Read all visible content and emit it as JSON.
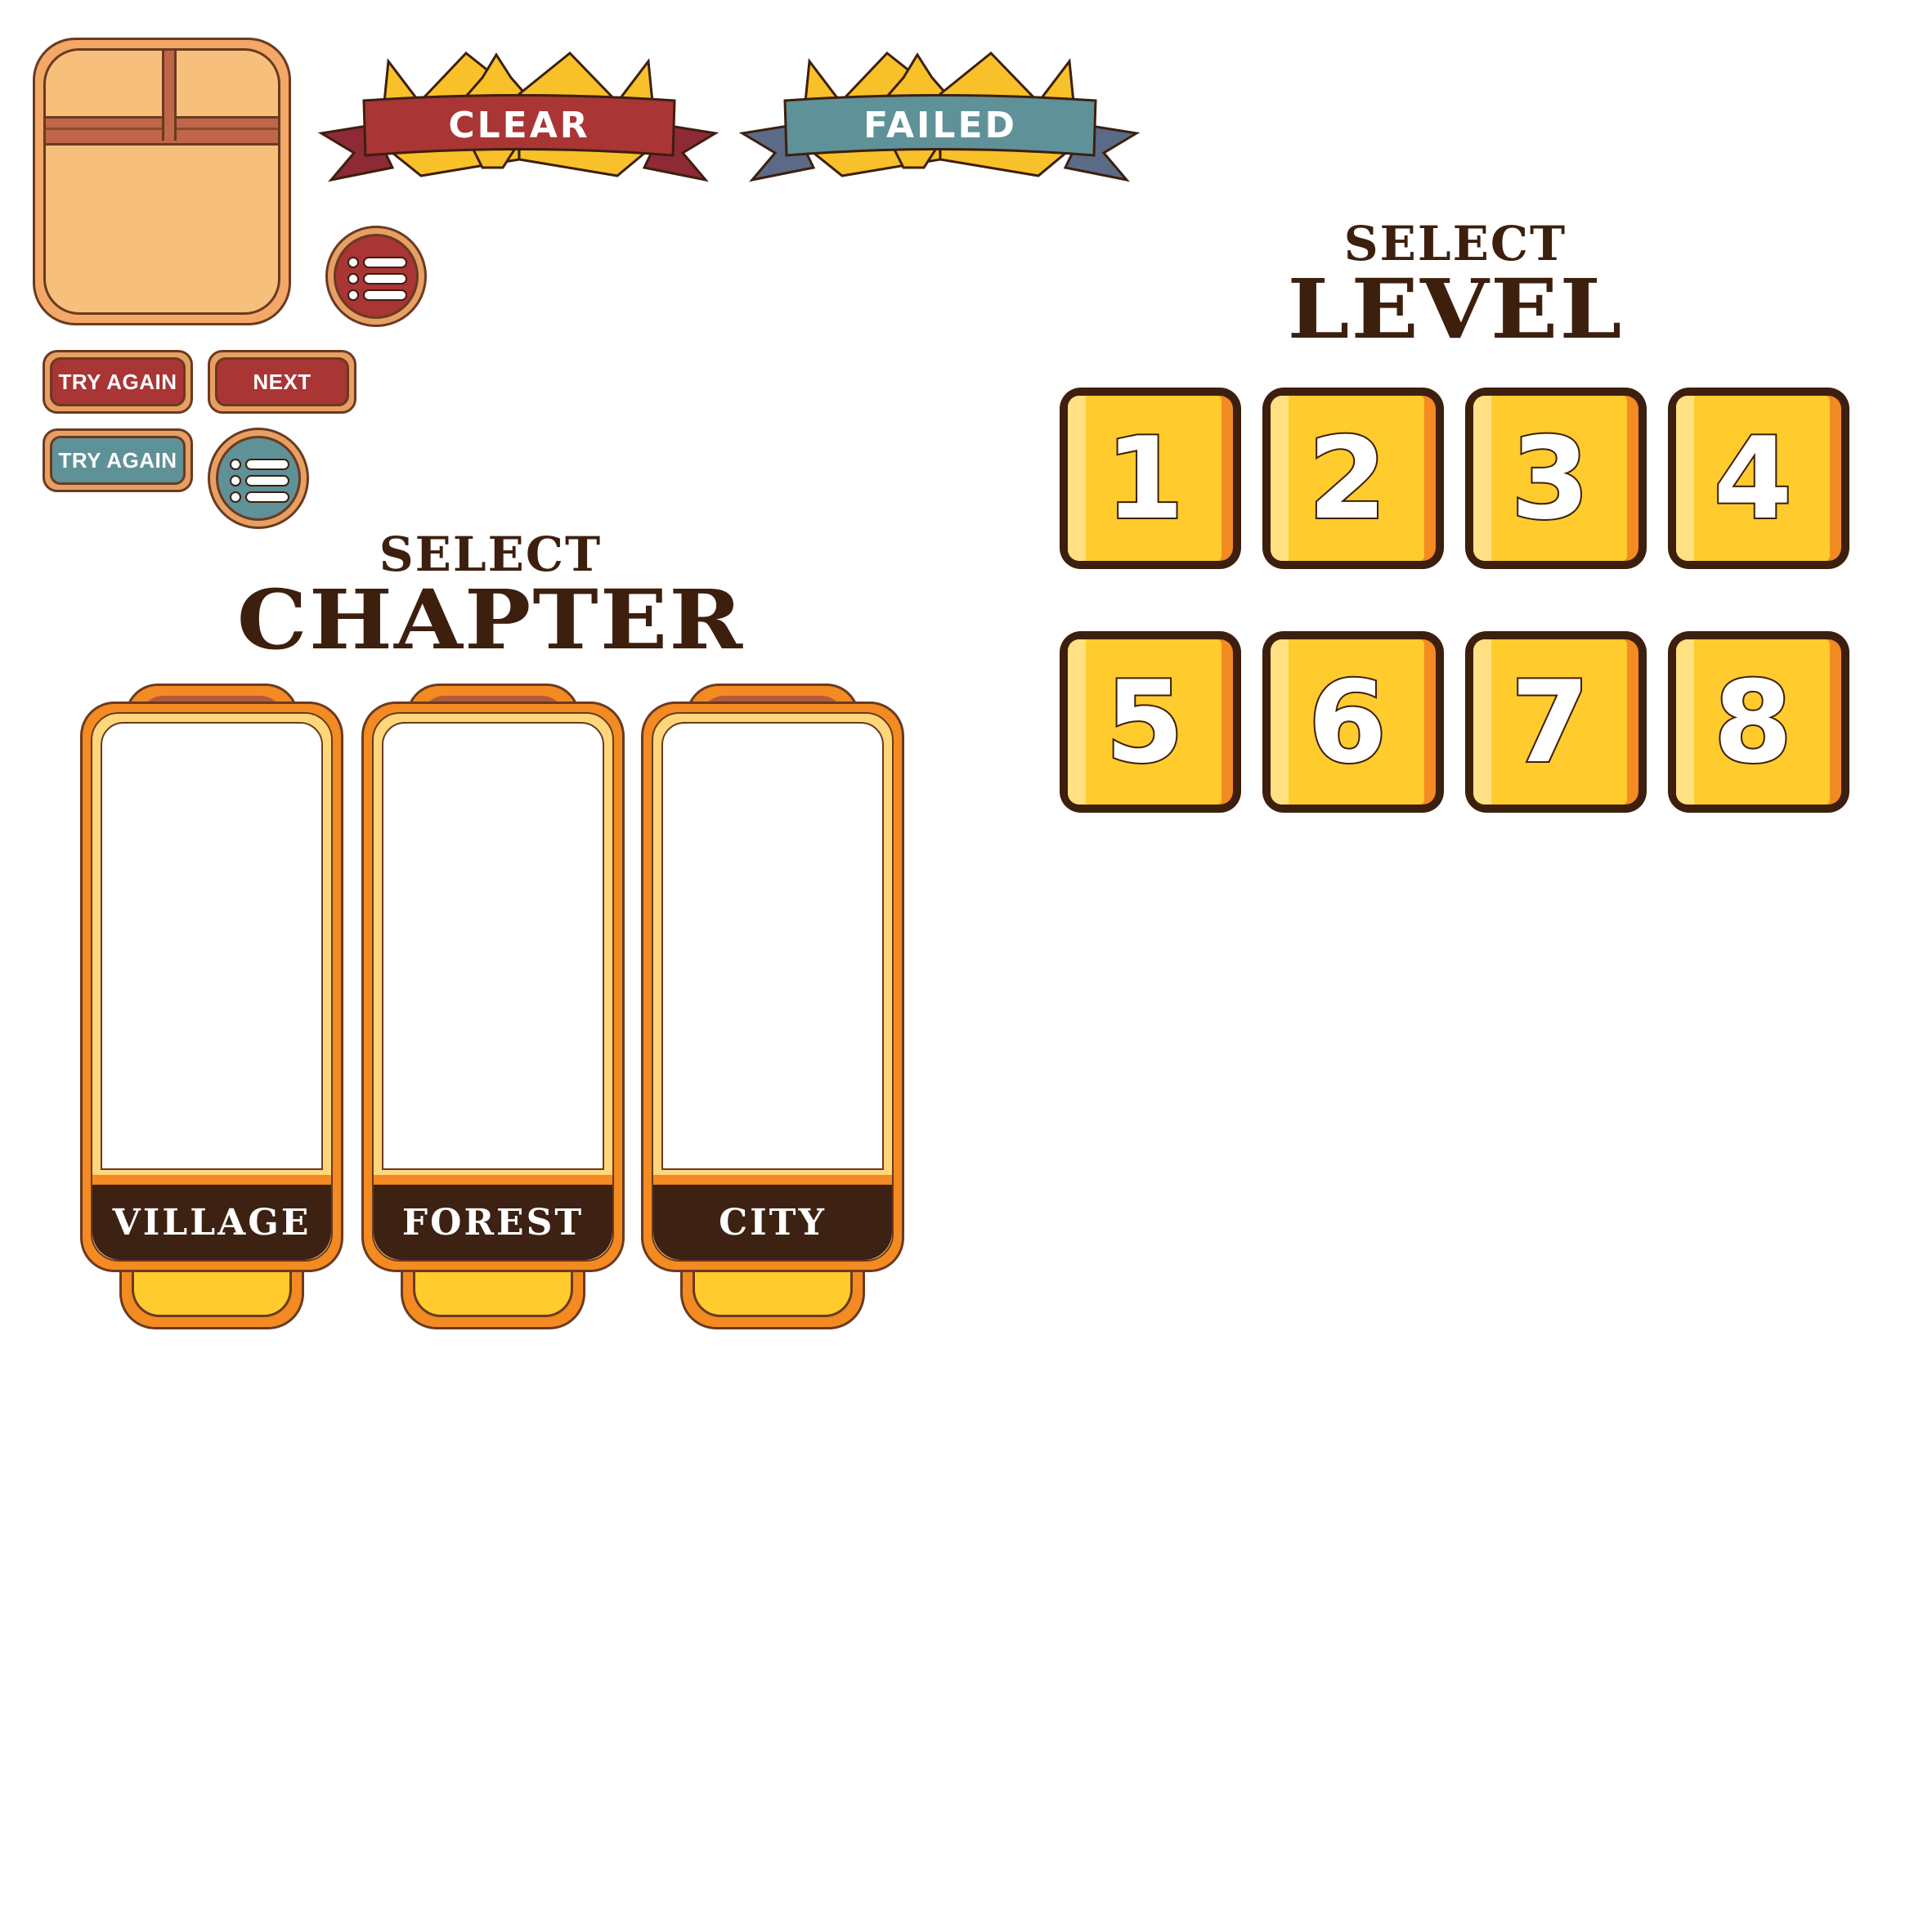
{
  "result_banners": {
    "clear": "CLEAR",
    "failed": "FAILED"
  },
  "buttons": {
    "try_again_red": "TRY AGAIN",
    "next": "NEXT",
    "try_again_teal": "TRY AGAIN"
  },
  "select_level": {
    "small": "SELECT",
    "big": "LEVEL",
    "levels": [
      "1",
      "2",
      "3",
      "4",
      "5",
      "6",
      "7",
      "8"
    ]
  },
  "select_chapter": {
    "small": "SELECT",
    "big": "CHAPTER",
    "chapters": [
      "VILLAGE",
      "FOREST",
      "CITY"
    ]
  },
  "colors": {
    "dark_brown": "#3d1f0e",
    "red": "#a93535",
    "teal": "#5f9198",
    "yellow": "#ffcb2d",
    "orange": "#f48a22",
    "panel": "#f6c07c"
  },
  "icons": [
    "list-icon",
    "crown-icon"
  ]
}
